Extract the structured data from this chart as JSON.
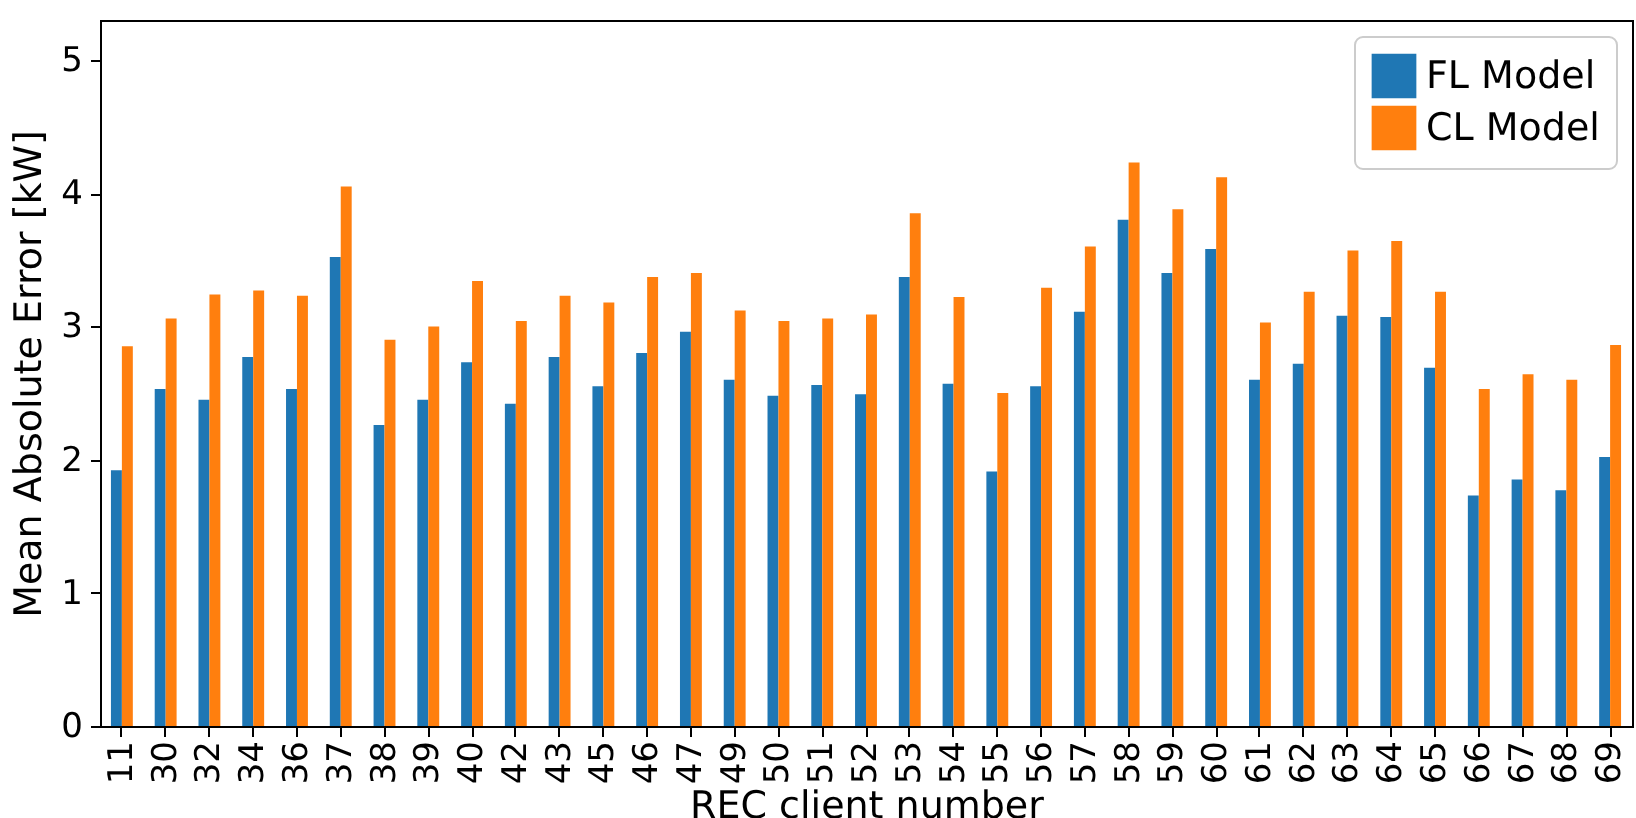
{
  "chart_data": {
    "type": "bar",
    "xlabel": "REC client number",
    "ylabel": "Mean Absolute Error [kW]",
    "categories": [
      "11",
      "30",
      "32",
      "34",
      "36",
      "37",
      "38",
      "39",
      "40",
      "42",
      "43",
      "45",
      "46",
      "47",
      "49",
      "50",
      "51",
      "52",
      "53",
      "54",
      "55",
      "56",
      "57",
      "58",
      "59",
      "60",
      "61",
      "62",
      "63",
      "64",
      "65",
      "66",
      "67",
      "68",
      "69"
    ],
    "series": [
      {
        "name": "FL Model",
        "color": "#1f77b4",
        "values": [
          1.92,
          2.53,
          2.45,
          2.77,
          2.53,
          3.52,
          2.26,
          2.45,
          2.73,
          2.42,
          2.77,
          2.55,
          2.8,
          2.96,
          2.6,
          2.48,
          2.56,
          2.49,
          3.37,
          2.57,
          1.91,
          2.55,
          3.11,
          3.8,
          3.4,
          3.58,
          2.6,
          2.72,
          3.08,
          3.07,
          2.69,
          1.73,
          1.85,
          1.77,
          2.02
        ]
      },
      {
        "name": "CL Model",
        "color": "#ff7f0e",
        "values": [
          2.85,
          3.06,
          3.24,
          3.27,
          3.23,
          4.05,
          2.9,
          3.0,
          3.34,
          3.04,
          3.23,
          3.18,
          3.37,
          3.4,
          3.12,
          3.04,
          3.06,
          3.09,
          3.85,
          3.22,
          2.5,
          3.29,
          3.6,
          4.23,
          3.88,
          4.12,
          3.03,
          3.26,
          3.57,
          3.64,
          3.26,
          2.53,
          2.64,
          2.6,
          2.86
        ]
      }
    ],
    "ylim": [
      0,
      5.3
    ],
    "yticks": [
      0,
      1,
      2,
      3,
      4,
      5
    ],
    "grid": false,
    "legend": "top right"
  }
}
